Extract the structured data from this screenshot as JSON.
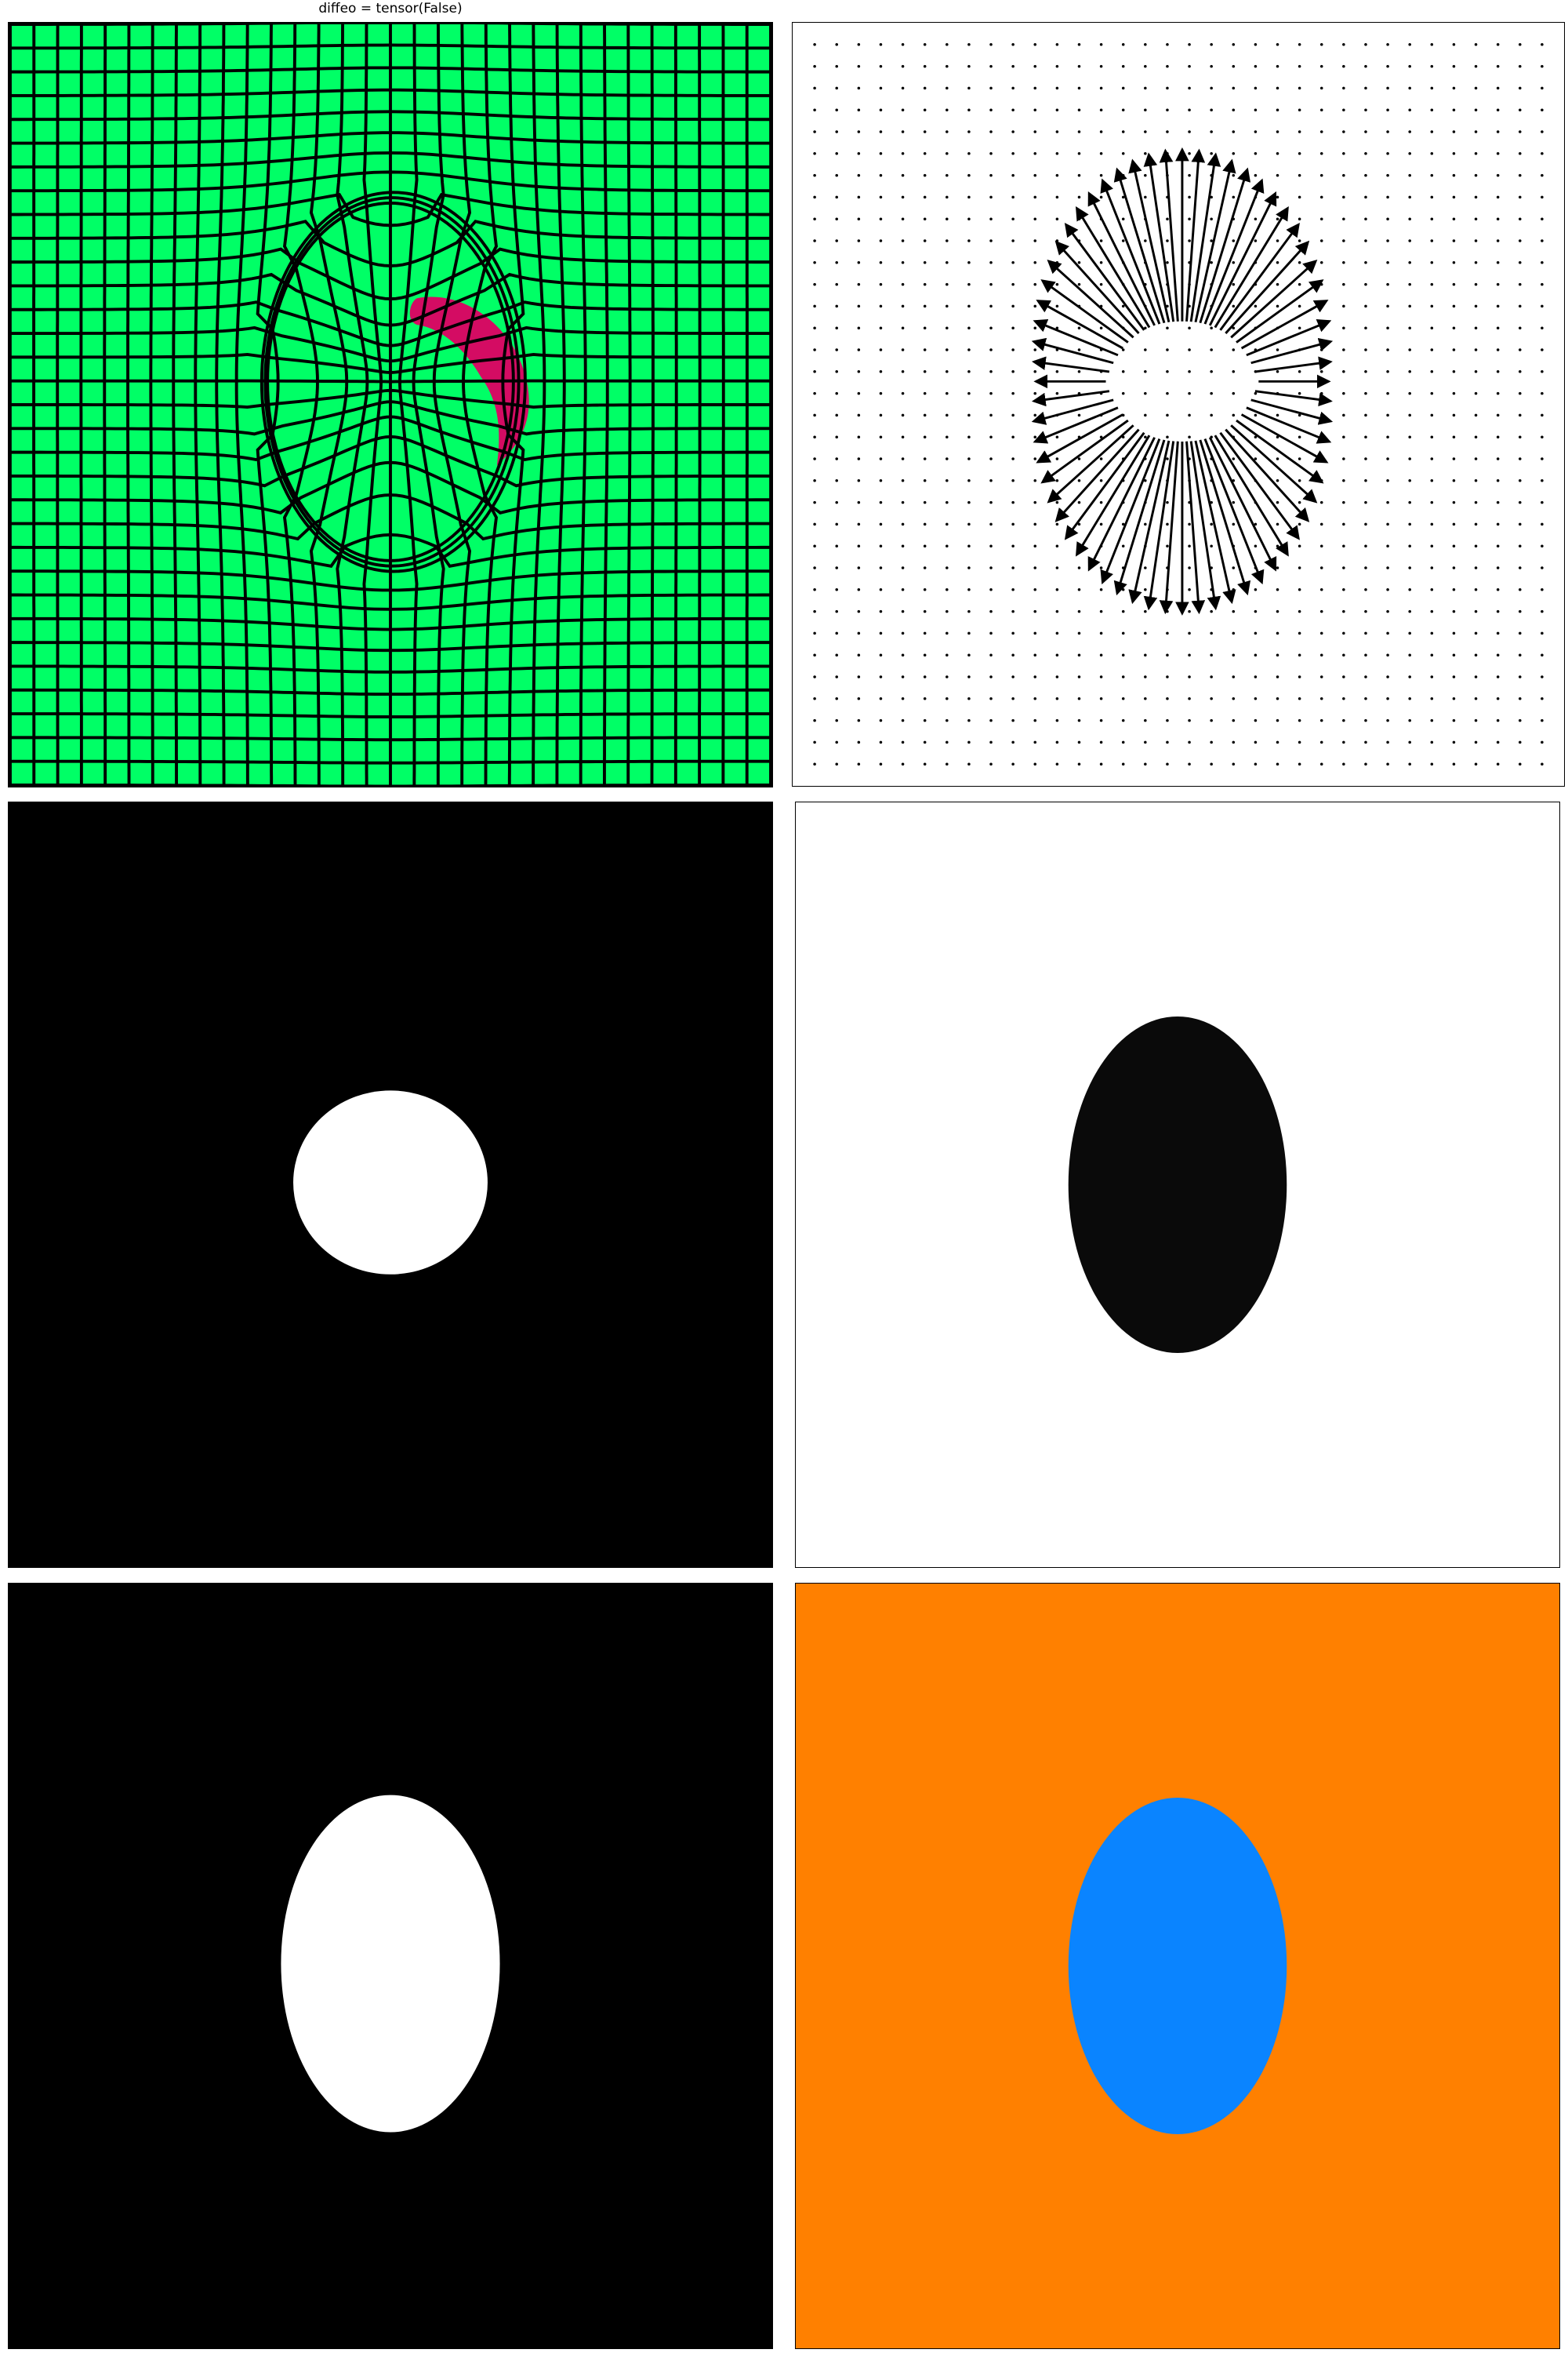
{
  "title": "diffeo = tensor(False)",
  "panels": [
    {
      "id": "deformation-grid",
      "description": "warped grid overlay on a segmentation map"
    },
    {
      "id": "displacement-field",
      "description": "quiver plot of the deformation vectors"
    },
    {
      "id": "source-mask"
    },
    {
      "id": "target-mask"
    },
    {
      "id": "warped-mask"
    },
    {
      "id": "label-map"
    }
  ],
  "colors": {
    "grid_background": "#00ff66",
    "grid_lines": "#000000",
    "grid_highlight": "#d40c63",
    "mask_foreground": "#ffffff",
    "mask_background": "#000000",
    "target_foreground": "#0a0a0a",
    "target_background": "#ffffff",
    "labelmap_background": "#ff8000",
    "labelmap_foreground": "#0a84ff"
  },
  "icons": {
    "arrow": "arrow-icon",
    "dot": "dot-icon"
  }
}
